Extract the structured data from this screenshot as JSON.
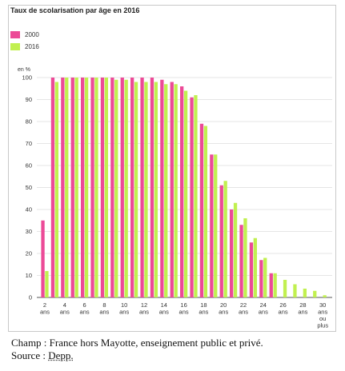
{
  "chart_data": {
    "type": "bar",
    "title": "Taux de scolarisation par âge en 2016",
    "ylabel": "en %",
    "ylim": [
      0,
      100
    ],
    "yticks": [
      0,
      10,
      20,
      30,
      40,
      50,
      60,
      70,
      80,
      90,
      100
    ],
    "grid": true,
    "legend_position": "top-left",
    "categories": [
      2,
      3,
      4,
      5,
      6,
      7,
      8,
      9,
      10,
      11,
      12,
      13,
      14,
      15,
      16,
      17,
      18,
      19,
      20,
      21,
      22,
      23,
      24,
      25,
      26,
      27,
      28,
      29,
      30
    ],
    "tick_labels": [
      [
        "2",
        "ans"
      ],
      [
        "4",
        "ans"
      ],
      [
        "6",
        "ans"
      ],
      [
        "8",
        "ans"
      ],
      [
        "10",
        "ans"
      ],
      [
        "12",
        "ans"
      ],
      [
        "14",
        "ans"
      ],
      [
        "16",
        "ans"
      ],
      [
        "18",
        "ans"
      ],
      [
        "20",
        "ans"
      ],
      [
        "22",
        "ans"
      ],
      [
        "24",
        "ans"
      ],
      [
        "26",
        "ans"
      ],
      [
        "28",
        "ans"
      ],
      [
        "30",
        "ans",
        "ou",
        "plus"
      ]
    ],
    "tick_label_ages": [
      2,
      4,
      6,
      8,
      10,
      12,
      14,
      16,
      18,
      20,
      22,
      24,
      26,
      28,
      30
    ],
    "series": [
      {
        "name": "2000",
        "color": "#ec4a97",
        "values": [
          35,
          100,
          100,
          100,
          100,
          100,
          100,
          100,
          100,
          100,
          100,
          100,
          99,
          98,
          96,
          91,
          79,
          65,
          51,
          40,
          33,
          25,
          17,
          11,
          null,
          null,
          null,
          null,
          null
        ]
      },
      {
        "name": "2016",
        "color": "#c1f050",
        "values": [
          12,
          98,
          100,
          100,
          100,
          100,
          100,
          99,
          99,
          98,
          98,
          98,
          97,
          97,
          94,
          92,
          78,
          65,
          53,
          43,
          36,
          27,
          18,
          11,
          8,
          6,
          4,
          3,
          1
        ]
      }
    ]
  },
  "footer": {
    "champ": "Champ : France hors Mayotte, enseignement public et privé.",
    "source_prefix": "Source : ",
    "source_name": "Depp."
  }
}
